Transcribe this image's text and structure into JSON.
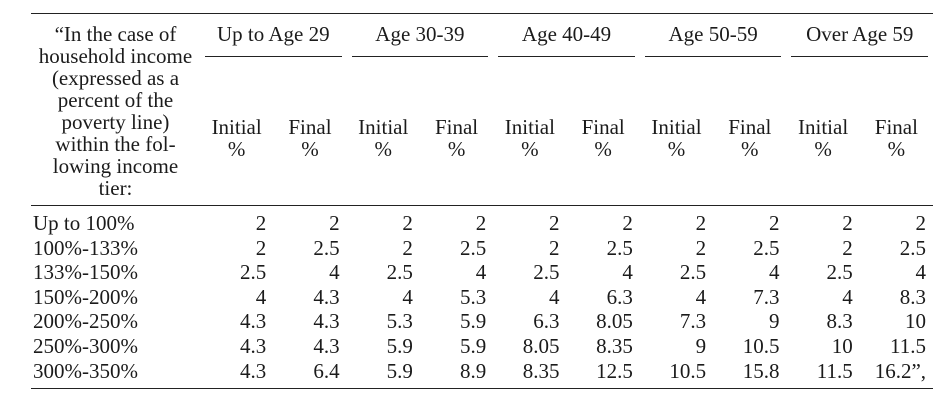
{
  "colors": {
    "background": "#ffffff",
    "text": "#1b1b1b",
    "rule": "#222222"
  },
  "table": {
    "stub_header_lines": [
      "“In the case of",
      "household income",
      "(expressed as a",
      "percent of the",
      "poverty line)",
      "within the fol-",
      "lowing income",
      "tier:"
    ],
    "age_groups": [
      "Up to Age 29",
      "Age 30-39",
      "Age 40-49",
      "Age 50-59",
      "Over Age 59"
    ],
    "subheader": {
      "initial": "Initial",
      "final": "Final",
      "percent": "%"
    },
    "rows": [
      {
        "label": "Up to 100%",
        "values": [
          "2",
          "2",
          "2",
          "2",
          "2",
          "2",
          "2",
          "2",
          "2",
          "2"
        ]
      },
      {
        "label": "100%-133%",
        "values": [
          "2",
          "2.5",
          "2",
          "2.5",
          "2",
          "2.5",
          "2",
          "2.5",
          "2",
          "2.5"
        ]
      },
      {
        "label": "133%-150%",
        "values": [
          "2.5",
          "4",
          "2.5",
          "4",
          "2.5",
          "4",
          "2.5",
          "4",
          "2.5",
          "4"
        ]
      },
      {
        "label": "150%-200%",
        "values": [
          "4",
          "4.3",
          "4",
          "5.3",
          "4",
          "6.3",
          "4",
          "7.3",
          "4",
          "8.3"
        ]
      },
      {
        "label": "200%-250%",
        "values": [
          "4.3",
          "4.3",
          "5.3",
          "5.9",
          "6.3",
          "8.05",
          "7.3",
          "9",
          "8.3",
          "10"
        ]
      },
      {
        "label": "250%-300%",
        "values": [
          "4.3",
          "4.3",
          "5.9",
          "5.9",
          "8.05",
          "8.35",
          "9",
          "10.5",
          "10",
          "11.5"
        ]
      },
      {
        "label": "300%-350%",
        "values": [
          "4.3",
          "6.4",
          "5.9",
          "8.9",
          "8.35",
          "12.5",
          "10.5",
          "15.8",
          "11.5",
          "16.2”,"
        ]
      }
    ]
  }
}
